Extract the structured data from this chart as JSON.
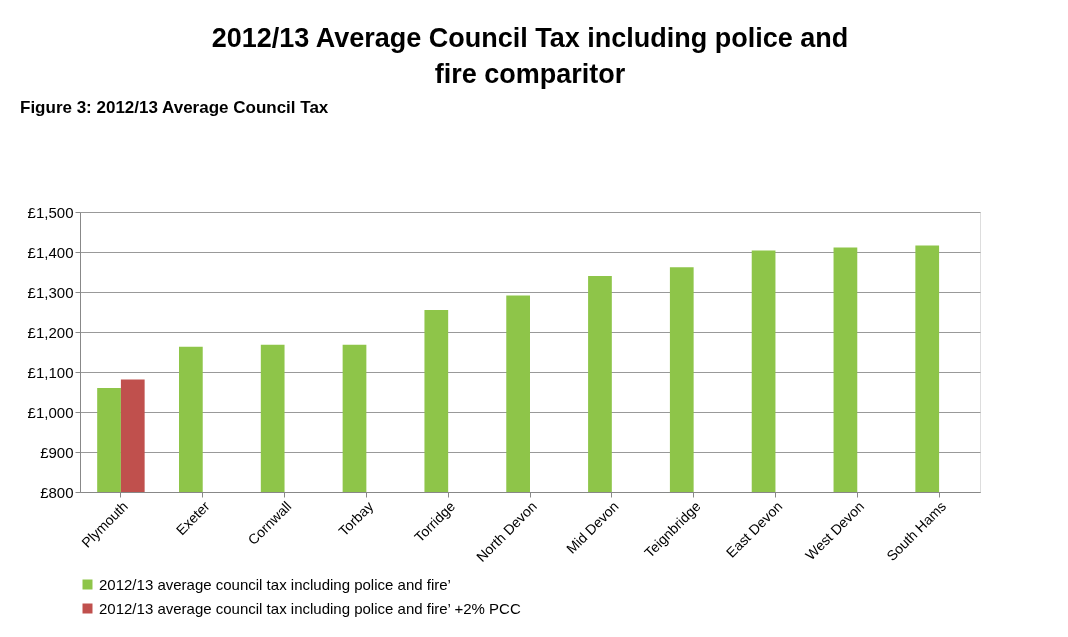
{
  "chart_data": {
    "type": "bar",
    "title": "2012/13 Average Council Tax including police and fire comparitor",
    "annotations": [
      "Figure 3: 2012/13 Average Council Tax"
    ],
    "categories": [
      "Plymouth",
      "Exeter",
      "Cornwall",
      "Torbay",
      "Torridge",
      "North Devon",
      "Mid Devon",
      "Teignbridge",
      "East Devon",
      "West Devon",
      "South Hams"
    ],
    "series": [
      {
        "name": "2012/13 average council tax including police and fire’",
        "color": "#8ec549",
        "values": [
          1060,
          1163,
          1168,
          1168,
          1255,
          1291,
          1340,
          1362,
          1404,
          1411,
          1416
        ]
      },
      {
        "name": "2012/13 average council tax including police and fire’ +2% PCC",
        "color": "#c0504d",
        "values": [
          1081,
          null,
          null,
          null,
          null,
          null,
          null,
          null,
          null,
          null,
          null
        ]
      }
    ],
    "ylim": [
      800,
      1500
    ],
    "yticks": [
      {
        "value": 800,
        "label": "£800"
      },
      {
        "value": 900,
        "label": "£900"
      },
      {
        "value": 1000,
        "label": "£1,000"
      },
      {
        "value": 1100,
        "label": "£1,100"
      },
      {
        "value": 1200,
        "label": "£1,200"
      },
      {
        "value": 1300,
        "label": "£1,300"
      },
      {
        "value": 1400,
        "label": "£1,400"
      },
      {
        "value": 1500,
        "label": "£1,500"
      }
    ],
    "grid": "y",
    "legend": "bottom"
  }
}
